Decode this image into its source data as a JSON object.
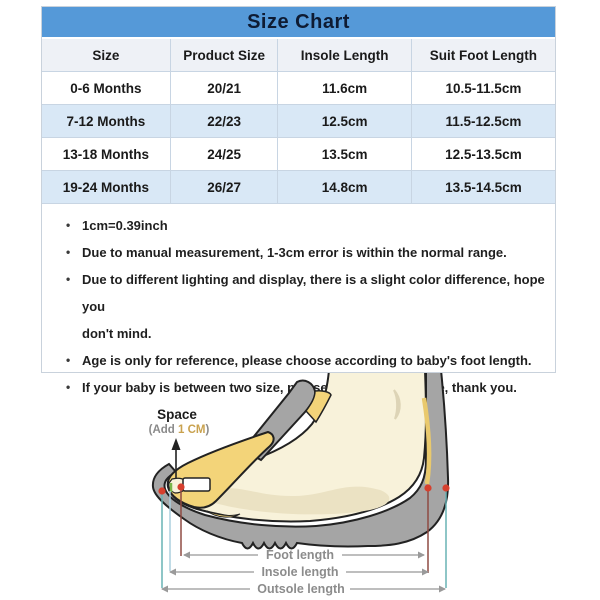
{
  "title": "Size Chart",
  "colors": {
    "header_blue": "#5599d8",
    "title_text": "#0e1b33",
    "row_alt_blue": "#d9e8f6",
    "header_row_bg": "#eef1f6",
    "grid_border": "#c8d5e3",
    "sole_gray": "#a5a5a5",
    "foot_cream": "#f8f2da",
    "strap_yellow": "#f3d479",
    "dot_red": "#d6402e",
    "foot_guide_maroon": "#8f4a42",
    "outsole_guide_teal": "#68b2b4",
    "label_gray": "#8c8c8c",
    "cm_gold": "#c9a24f",
    "space_green": "#7ab648"
  },
  "icons": {
    "bullet": "•"
  },
  "table": {
    "headers": [
      "Size",
      "Product Size",
      "Insole Length",
      "Suit Foot Length"
    ],
    "rows": [
      [
        "0-6 Months",
        "20/21",
        "11.6cm",
        "10.5-11.5cm"
      ],
      [
        "7-12 Months",
        "22/23",
        "12.5cm",
        "11.5-12.5cm"
      ],
      [
        "13-18 Months",
        "24/25",
        "13.5cm",
        "12.5-13.5cm"
      ],
      [
        "19-24 Months",
        "26/27",
        "14.8cm",
        "13.5-14.5cm"
      ]
    ]
  },
  "notes": [
    {
      "lines": [
        "1cm=0.39inch"
      ]
    },
    {
      "lines": [
        "Due to manual measurement, 1-3cm error is within the normal range."
      ]
    },
    {
      "lines": [
        "Due to different lighting and display, there is a slight color difference, hope you",
        "don't mind."
      ]
    },
    {
      "lines": [
        "Age is only for reference, please choose according to baby's foot length."
      ]
    },
    {
      "lines": [
        "If your baby is between two size, please choose larger size, thank you."
      ]
    }
  ],
  "diagram": {
    "space_label": "Space",
    "space_sub_prefix": "(Add ",
    "space_sub_value": "1 CM",
    "space_sub_suffix": ")",
    "measurements": [
      "Foot length",
      "Insole length",
      "Outsole length"
    ]
  }
}
